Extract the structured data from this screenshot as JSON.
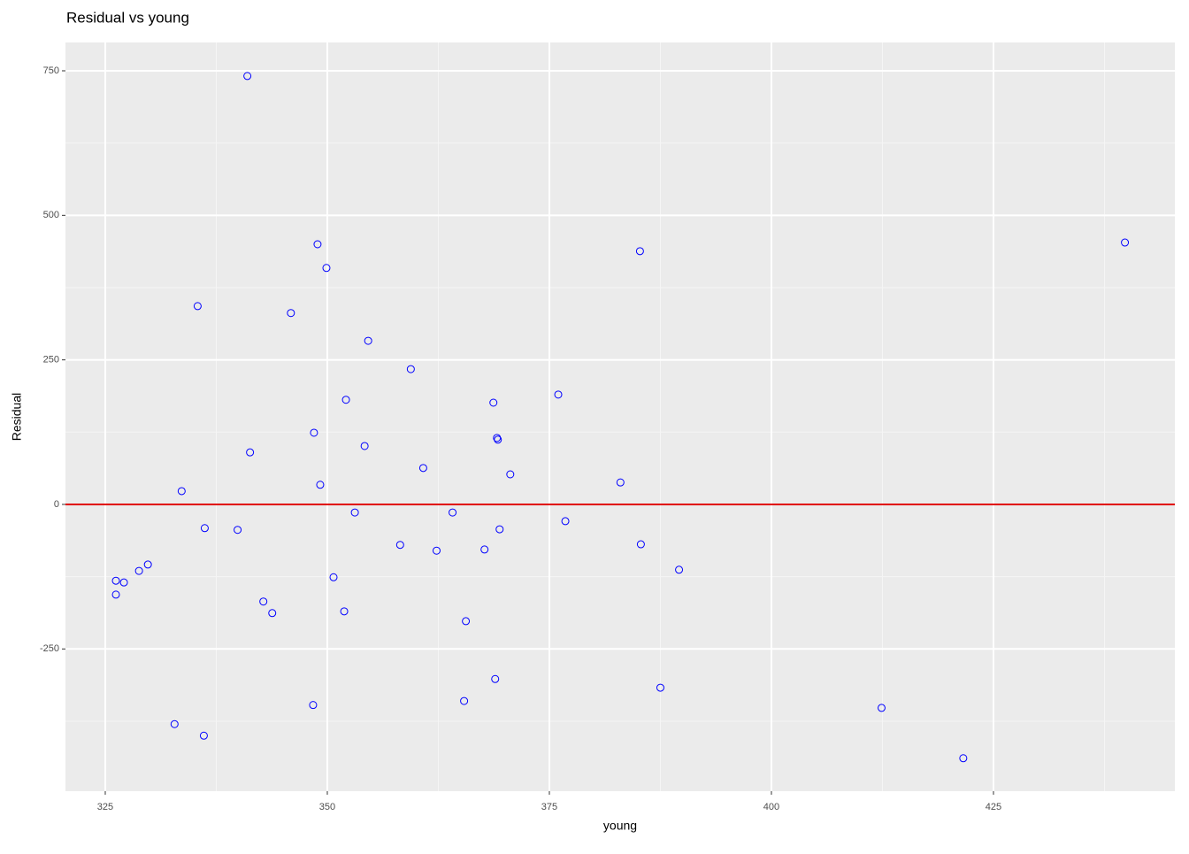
{
  "chart_data": {
    "type": "scatter",
    "title": "Residual vs young",
    "x_label": "young",
    "y_label": "Residual",
    "series": [
      {
        "color": "#0000ff",
        "x": [
          341.0,
          439.8,
          348.9,
          385.2,
          349.9,
          335.4,
          345.9,
          354.6,
          359.4,
          376.0,
          352.1,
          368.7,
          348.5,
          369.1,
          369.2,
          354.2,
          341.3,
          360.8,
          370.6,
          349.2,
          383.0,
          333.6,
          353.1,
          364.1,
          376.8,
          336.2,
          369.4,
          339.9,
          358.2,
          385.3,
          362.3,
          367.7,
          329.8,
          328.8,
          389.6,
          326.2,
          327.1,
          350.7,
          326.2,
          342.8,
          343.8,
          351.9,
          365.6,
          368.9,
          387.5,
          348.4,
          365.4,
          412.4,
          332.8,
          336.1,
          421.6
        ],
        "values": [
          741,
          453,
          450,
          438,
          409,
          343,
          331,
          283,
          234,
          190,
          181,
          176,
          124,
          115,
          112,
          101,
          90,
          63,
          52,
          34,
          38,
          23,
          -14,
          -14,
          -29,
          -41,
          -43,
          -44,
          -70,
          -69,
          -80,
          -78,
          -104,
          -115,
          -113,
          -132,
          -135,
          -126,
          -156,
          -168,
          -188,
          -185,
          -202,
          -302,
          -317,
          -347,
          -340,
          -352,
          -380,
          -400,
          -439
        ]
      }
    ],
    "hline": {
      "value": 0,
      "color": "#e00000"
    },
    "xlim": [
      320.52,
      445.42
    ],
    "xticks": [
      325,
      350,
      375,
      400,
      425
    ],
    "ylim": [
      -496,
      799
    ],
    "yticks": [
      -250,
      0,
      250,
      500,
      750
    ],
    "grid": true
  }
}
